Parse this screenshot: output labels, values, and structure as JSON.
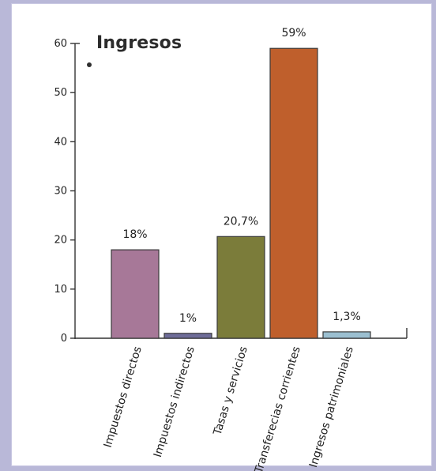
{
  "chart_data": {
    "type": "bar",
    "title": "Ingresos",
    "categories": [
      "Impuestos directos",
      "Impuestos indirectos",
      "Tasas y servicios",
      "Transferecias corrientes",
      "Ingresos patrimoniales"
    ],
    "values": [
      18,
      1,
      20.7,
      59,
      1.3
    ],
    "data_labels": [
      "18%",
      "1%",
      "20,7%",
      "59%",
      "1,3%"
    ],
    "yticks": [
      "0",
      "10",
      "20",
      "30",
      "40",
      "50",
      "60"
    ],
    "ylim": [
      0,
      60
    ],
    "bar_colors": [
      "#a77898",
      "#6e6c98",
      "#7b7c3a",
      "#bf5f2c",
      "#9bbfd0"
    ],
    "grid": false
  }
}
